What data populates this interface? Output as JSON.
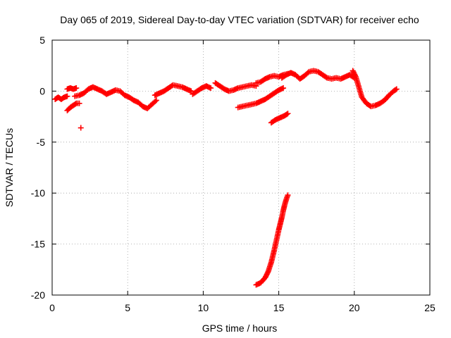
{
  "chart_data": {
    "type": "scatter",
    "title": "Day 065 of 2019, Sidereal Day-to-day VTEC variation (SDTVAR) for receiver echo",
    "xlabel": "GPS time / hours",
    "ylabel": "SDTVAR / TECUs",
    "xlim": [
      0,
      25
    ],
    "ylim": [
      -20,
      5
    ],
    "xticks": [
      0,
      5,
      10,
      15,
      20,
      25
    ],
    "yticks": [
      -20,
      -15,
      -10,
      -5,
      0,
      5
    ],
    "xtick_labels": [
      "0",
      "5",
      "10",
      "15",
      "20",
      "25"
    ],
    "ytick_labels": [
      "-20",
      "-15",
      "-10",
      "-5",
      "0",
      "5"
    ],
    "grid": true,
    "marker": "+",
    "series": [
      {
        "name": "sat-track-a",
        "color": "#ff0000",
        "x": [
          0.2,
          0.4,
          0.6,
          0.8,
          1.0
        ],
        "y": [
          -0.8,
          -0.6,
          -0.8,
          -0.6,
          -0.5
        ]
      },
      {
        "name": "sat-track-b",
        "color": "#ff0000",
        "x": [
          1.0,
          1.2,
          1.4,
          1.6
        ],
        "y": [
          0.2,
          0.3,
          0.2,
          0.3
        ]
      },
      {
        "name": "sat-track-c",
        "color": "#ff0000",
        "x": [
          1.0,
          1.2,
          1.4,
          1.6,
          1.8
        ],
        "y": [
          -1.9,
          -1.6,
          -1.4,
          -1.2,
          -1.2
        ]
      },
      {
        "name": "sat-track-d",
        "color": "#ff0000",
        "x": [
          1.9
        ],
        "y": [
          -3.6
        ]
      },
      {
        "name": "sat-track-e",
        "color": "#ff0000",
        "x": [
          1.5,
          1.8,
          2.1,
          2.4,
          2.7,
          3.0,
          3.3,
          3.6,
          3.9,
          4.2,
          4.5,
          4.8,
          5.1,
          5.4,
          5.7,
          6.0,
          6.3,
          6.6,
          6.9
        ],
        "y": [
          -0.5,
          -0.4,
          -0.2,
          0.2,
          0.4,
          0.2,
          0.0,
          -0.3,
          -0.1,
          0.1,
          0.0,
          -0.4,
          -0.6,
          -0.9,
          -1.1,
          -1.5,
          -1.7,
          -1.3,
          -0.9
        ]
      },
      {
        "name": "sat-track-f",
        "color": "#ff0000",
        "x": [
          6.8,
          7.1,
          7.4,
          7.7,
          8.0,
          8.3,
          8.6,
          8.9,
          9.2
        ],
        "y": [
          -0.4,
          -0.2,
          0.0,
          0.3,
          0.6,
          0.5,
          0.4,
          0.2,
          0.0
        ]
      },
      {
        "name": "sat-track-g",
        "color": "#ff0000",
        "x": [
          9.3,
          9.6,
          9.9,
          10.2,
          10.5
        ],
        "y": [
          -0.3,
          0.0,
          0.3,
          0.5,
          0.3
        ]
      },
      {
        "name": "sat-track-h",
        "color": "#ff0000",
        "x": [
          10.8,
          11.1,
          11.4,
          11.7,
          12.0,
          12.3,
          12.6,
          12.9,
          13.2,
          13.5
        ],
        "y": [
          0.8,
          0.5,
          0.2,
          0.0,
          0.1,
          0.3,
          0.4,
          0.5,
          0.6,
          0.5
        ]
      },
      {
        "name": "sat-track-i",
        "color": "#ff0000",
        "x": [
          13.5,
          13.8,
          14.1,
          14.4,
          14.7,
          15.0,
          15.3,
          15.6
        ],
        "y": [
          0.8,
          0.9,
          1.2,
          1.4,
          1.5,
          1.4,
          1.6,
          1.7
        ]
      },
      {
        "name": "sat-track-j",
        "color": "#ff0000",
        "x": [
          12.3,
          12.6,
          12.9,
          13.2,
          13.5,
          13.8,
          14.1,
          14.4,
          14.7,
          15.0,
          15.3
        ],
        "y": [
          -1.6,
          -1.5,
          -1.4,
          -1.3,
          -1.2,
          -1.0,
          -0.8,
          -0.5,
          -0.2,
          0.1,
          0.3
        ]
      },
      {
        "name": "sat-track-k",
        "color": "#ff0000",
        "x": [
          14.5,
          14.8,
          15.1,
          15.4,
          15.6
        ],
        "y": [
          -3.1,
          -2.8,
          -2.6,
          -2.4,
          -2.2
        ]
      },
      {
        "name": "sat-track-l",
        "color": "#ff0000",
        "x": [
          13.5,
          13.8,
          14.1,
          14.3,
          14.5,
          14.7,
          14.85,
          15.0,
          15.1,
          15.2,
          15.3,
          15.4,
          15.5,
          15.6
        ],
        "y": [
          -19.0,
          -18.8,
          -18.3,
          -17.7,
          -16.8,
          -15.6,
          -14.6,
          -13.6,
          -13.0,
          -12.4,
          -11.7,
          -11.1,
          -10.6,
          -10.2
        ]
      },
      {
        "name": "sat-track-m",
        "color": "#ff0000",
        "x": [
          15.2,
          15.5,
          15.8,
          16.1,
          16.4,
          16.7,
          17.0,
          17.3,
          17.6,
          17.9,
          18.2,
          18.5,
          18.8,
          19.1,
          19.4,
          19.7,
          20.0
        ],
        "y": [
          1.3,
          1.6,
          1.8,
          1.6,
          1.2,
          1.5,
          1.9,
          2.0,
          1.9,
          1.6,
          1.3,
          1.2,
          1.3,
          1.2,
          1.4,
          1.6,
          1.3
        ]
      },
      {
        "name": "sat-track-n",
        "color": "#ff0000",
        "x": [
          19.9,
          20.1,
          20.3,
          20.5,
          20.8,
          21.1,
          21.4,
          21.7,
          22.0,
          22.3,
          22.6,
          22.8
        ],
        "y": [
          2.0,
          1.4,
          0.4,
          -0.6,
          -1.2,
          -1.5,
          -1.4,
          -1.2,
          -0.9,
          -0.4,
          0.0,
          0.2
        ]
      }
    ]
  }
}
